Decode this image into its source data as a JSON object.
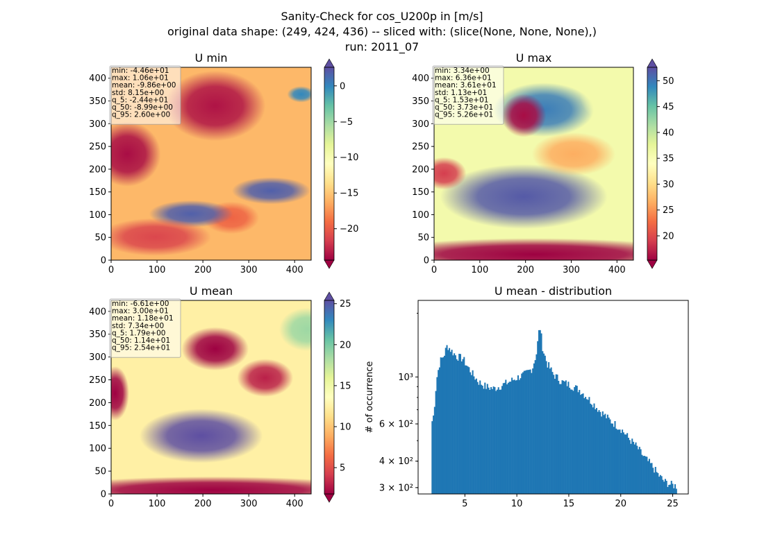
{
  "figure": {
    "title_lines": [
      "Sanity-Check for cos_U200p in [m/s]",
      "original data shape: (249, 424, 436) -- sliced with: (slice(None, None, None),)",
      "run: 2011_07"
    ]
  },
  "chart_data": [
    {
      "type": "heatmap",
      "title": "U min",
      "xlim": [
        0,
        436
      ],
      "ylim": [
        0,
        424
      ],
      "xticks": [
        0,
        100,
        200,
        300,
        400
      ],
      "yticks": [
        0,
        50,
        100,
        150,
        200,
        250,
        300,
        350,
        400
      ],
      "colormap": "Spectral",
      "colorbar": {
        "ticks": [
          0,
          -5,
          -10,
          -15,
          -20
        ],
        "tick_labels": [
          "0",
          "−5",
          "−10",
          "−15",
          "−20"
        ],
        "range": [
          -24.4,
          2.6
        ]
      },
      "stats": [
        "min: -4.46e+01",
        "max: 1.06e+01",
        "mean: -9.86e+00",
        "std: 8.15e+00",
        "q_5: -2.44e+01",
        "q_50: -8.99e+00",
        "q_95: 2.60e+00"
      ]
    },
    {
      "type": "heatmap",
      "title": "U max",
      "xlim": [
        0,
        436
      ],
      "ylim": [
        0,
        424
      ],
      "xticks": [
        0,
        100,
        200,
        300,
        400
      ],
      "yticks": [
        0,
        50,
        100,
        150,
        200,
        250,
        300,
        350,
        400
      ],
      "colormap": "Spectral",
      "colorbar": {
        "ticks": [
          50,
          45,
          40,
          35,
          30,
          25,
          20
        ],
        "tick_labels": [
          "50",
          "45",
          "40",
          "35",
          "30",
          "25",
          "20"
        ],
        "range": [
          15.3,
          52.6
        ]
      },
      "stats": [
        "min: 3.34e+00",
        "max: 6.36e+01",
        "mean: 3.61e+01",
        "std: 1.13e+01",
        "q_5: 1.53e+01",
        "q_50: 3.73e+01",
        "q_95: 5.26e+01"
      ]
    },
    {
      "type": "heatmap",
      "title": "U mean",
      "xlim": [
        0,
        436
      ],
      "ylim": [
        0,
        424
      ],
      "xticks": [
        0,
        100,
        200,
        300,
        400
      ],
      "yticks": [
        0,
        50,
        100,
        150,
        200,
        250,
        300,
        350,
        400
      ],
      "colormap": "Spectral",
      "colorbar": {
        "ticks": [
          25,
          20,
          15,
          10,
          5
        ],
        "tick_labels": [
          "25",
          "20",
          "15",
          "10",
          "5"
        ],
        "range": [
          1.79,
          25.4
        ]
      },
      "stats": [
        "min: -6.61e+00",
        "max: 3.00e+01",
        "mean: 1.18e+01",
        "std: 7.34e+00",
        "q_5: 1.79e+00",
        "q_50: 1.14e+01",
        "q_95: 2.54e+01"
      ]
    },
    {
      "type": "bar",
      "title": "U mean - distribution",
      "xlabel": "",
      "ylabel": "# of occurrence",
      "yscale": "log",
      "xlim": [
        0.5,
        26.5
      ],
      "ylim": [
        280,
        2300
      ],
      "xticks": [
        5,
        10,
        15,
        20,
        25
      ],
      "yticks": [
        300,
        400,
        600,
        1000
      ],
      "ytick_labels": [
        "3 × 10²",
        "4 × 10²",
        "6 × 10²",
        "10³"
      ],
      "bar_color": "#1f77b4",
      "bins": {
        "start": 1.79,
        "end": 25.4
      },
      "profile": [
        [
          1.79,
          640
        ],
        [
          1.9,
          600
        ],
        [
          2.1,
          760
        ],
        [
          2.3,
          990
        ],
        [
          2.6,
          1180
        ],
        [
          3.0,
          1270
        ],
        [
          3.3,
          1410
        ],
        [
          3.7,
          1330
        ],
        [
          4.2,
          1250
        ],
        [
          4.8,
          1220
        ],
        [
          5.2,
          1130
        ],
        [
          5.8,
          1020
        ],
        [
          6.3,
          950
        ],
        [
          7.0,
          900
        ],
        [
          7.8,
          880
        ],
        [
          8.5,
          910
        ],
        [
          9.3,
          950
        ],
        [
          10.0,
          990
        ],
        [
          10.8,
          1030
        ],
        [
          11.5,
          1100
        ],
        [
          11.9,
          1300
        ],
        [
          12.2,
          1750
        ],
        [
          12.5,
          1350
        ],
        [
          12.9,
          1160
        ],
        [
          13.5,
          1030
        ],
        [
          14.3,
          950
        ],
        [
          15.0,
          920
        ],
        [
          16.0,
          870
        ],
        [
          17.0,
          780
        ],
        [
          18.0,
          690
        ],
        [
          19.0,
          620
        ],
        [
          20.0,
          570
        ],
        [
          20.8,
          510
        ],
        [
          21.5,
          470
        ],
        [
          22.2,
          420
        ],
        [
          23.0,
          380
        ],
        [
          23.6,
          345
        ],
        [
          24.2,
          320
        ],
        [
          24.8,
          310
        ],
        [
          25.4,
          305
        ]
      ]
    }
  ]
}
